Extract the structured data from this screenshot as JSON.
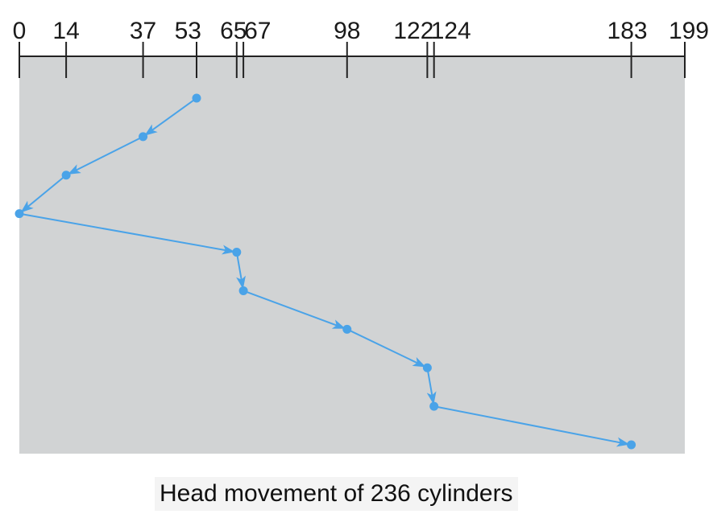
{
  "colors": {
    "background": "#ffffff",
    "plot_area": "#d1d3d4",
    "path": "#4aa3e8",
    "axis": "#222222"
  },
  "chart_data": {
    "type": "line",
    "x_axis": {
      "range": [
        0,
        199
      ],
      "position": "top",
      "ticks": [
        0,
        14,
        37,
        53,
        65,
        67,
        98,
        122,
        124,
        183,
        199
      ],
      "tick_labels": [
        "0",
        "14",
        "37",
        "53",
        "65",
        "67",
        "98",
        "122",
        "124",
        "183",
        "199"
      ]
    },
    "series": [
      {
        "points": [
          53,
          37,
          14,
          0,
          65,
          67,
          98,
          122,
          124,
          183
        ],
        "arrows": true
      }
    ],
    "grid": false
  },
  "caption": "Head movement of 236 cylinders"
}
